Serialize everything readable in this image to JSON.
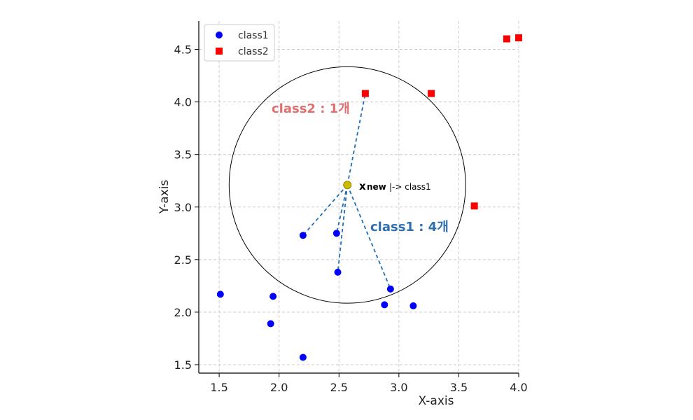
{
  "chart_data": {
    "type": "scatter",
    "xlabel": "X-axis",
    "ylabel": "Y-axis",
    "xlim": [
      1.33,
      4.0
    ],
    "ylim": [
      1.42,
      4.77
    ],
    "xticks": [
      "1.5",
      "2.0",
      "2.5",
      "3.0",
      "3.5",
      "4.0"
    ],
    "xtick_values": [
      1.5,
      2.0,
      2.5,
      3.0,
      3.5,
      4.0
    ],
    "yticks": [
      "1.5",
      "2.0",
      "2.5",
      "3.0",
      "3.5",
      "4.0",
      "4.5"
    ],
    "ytick_values": [
      1.5,
      2.0,
      2.5,
      3.0,
      3.5,
      4.0,
      4.5
    ],
    "grid": true,
    "legend_position": "top-left",
    "series": [
      {
        "name": "class1",
        "marker": "circle",
        "color": "#0000ff",
        "points": [
          [
            1.51,
            2.17
          ],
          [
            1.95,
            2.15
          ],
          [
            1.93,
            1.89
          ],
          [
            2.2,
            1.57
          ],
          [
            2.2,
            2.73
          ],
          [
            2.48,
            2.75
          ],
          [
            2.49,
            2.38
          ],
          [
            2.93,
            2.22
          ],
          [
            2.88,
            2.07
          ],
          [
            3.12,
            2.06
          ]
        ]
      },
      {
        "name": "class2",
        "marker": "square",
        "color": "#ff0000",
        "points": [
          [
            2.72,
            4.08
          ],
          [
            3.27,
            4.08
          ],
          [
            3.63,
            3.01
          ],
          [
            3.9,
            4.6
          ],
          [
            4.0,
            4.61
          ]
        ]
      }
    ],
    "query_point": {
      "x": 2.57,
      "y": 3.21,
      "color": "#ccbb00"
    },
    "radius_circle": {
      "cx": 2.57,
      "cy": 3.21
    },
    "neighbor_lines": [
      [
        2.2,
        2.73
      ],
      [
        2.48,
        2.75
      ],
      [
        2.49,
        2.38
      ],
      [
        2.93,
        2.22
      ],
      [
        2.72,
        4.08
      ]
    ],
    "neighbor_line_color": "#1f6fb5",
    "annotations": {
      "class2_count": {
        "text": "class2 : 1개",
        "color": "#e07070"
      },
      "class1_count": {
        "text": "class1 : 4개",
        "color": "#2f6fb0"
      },
      "xnew_main": "x",
      "xnew_sub": "new",
      "xnew_arrow": "|-> class1"
    }
  }
}
